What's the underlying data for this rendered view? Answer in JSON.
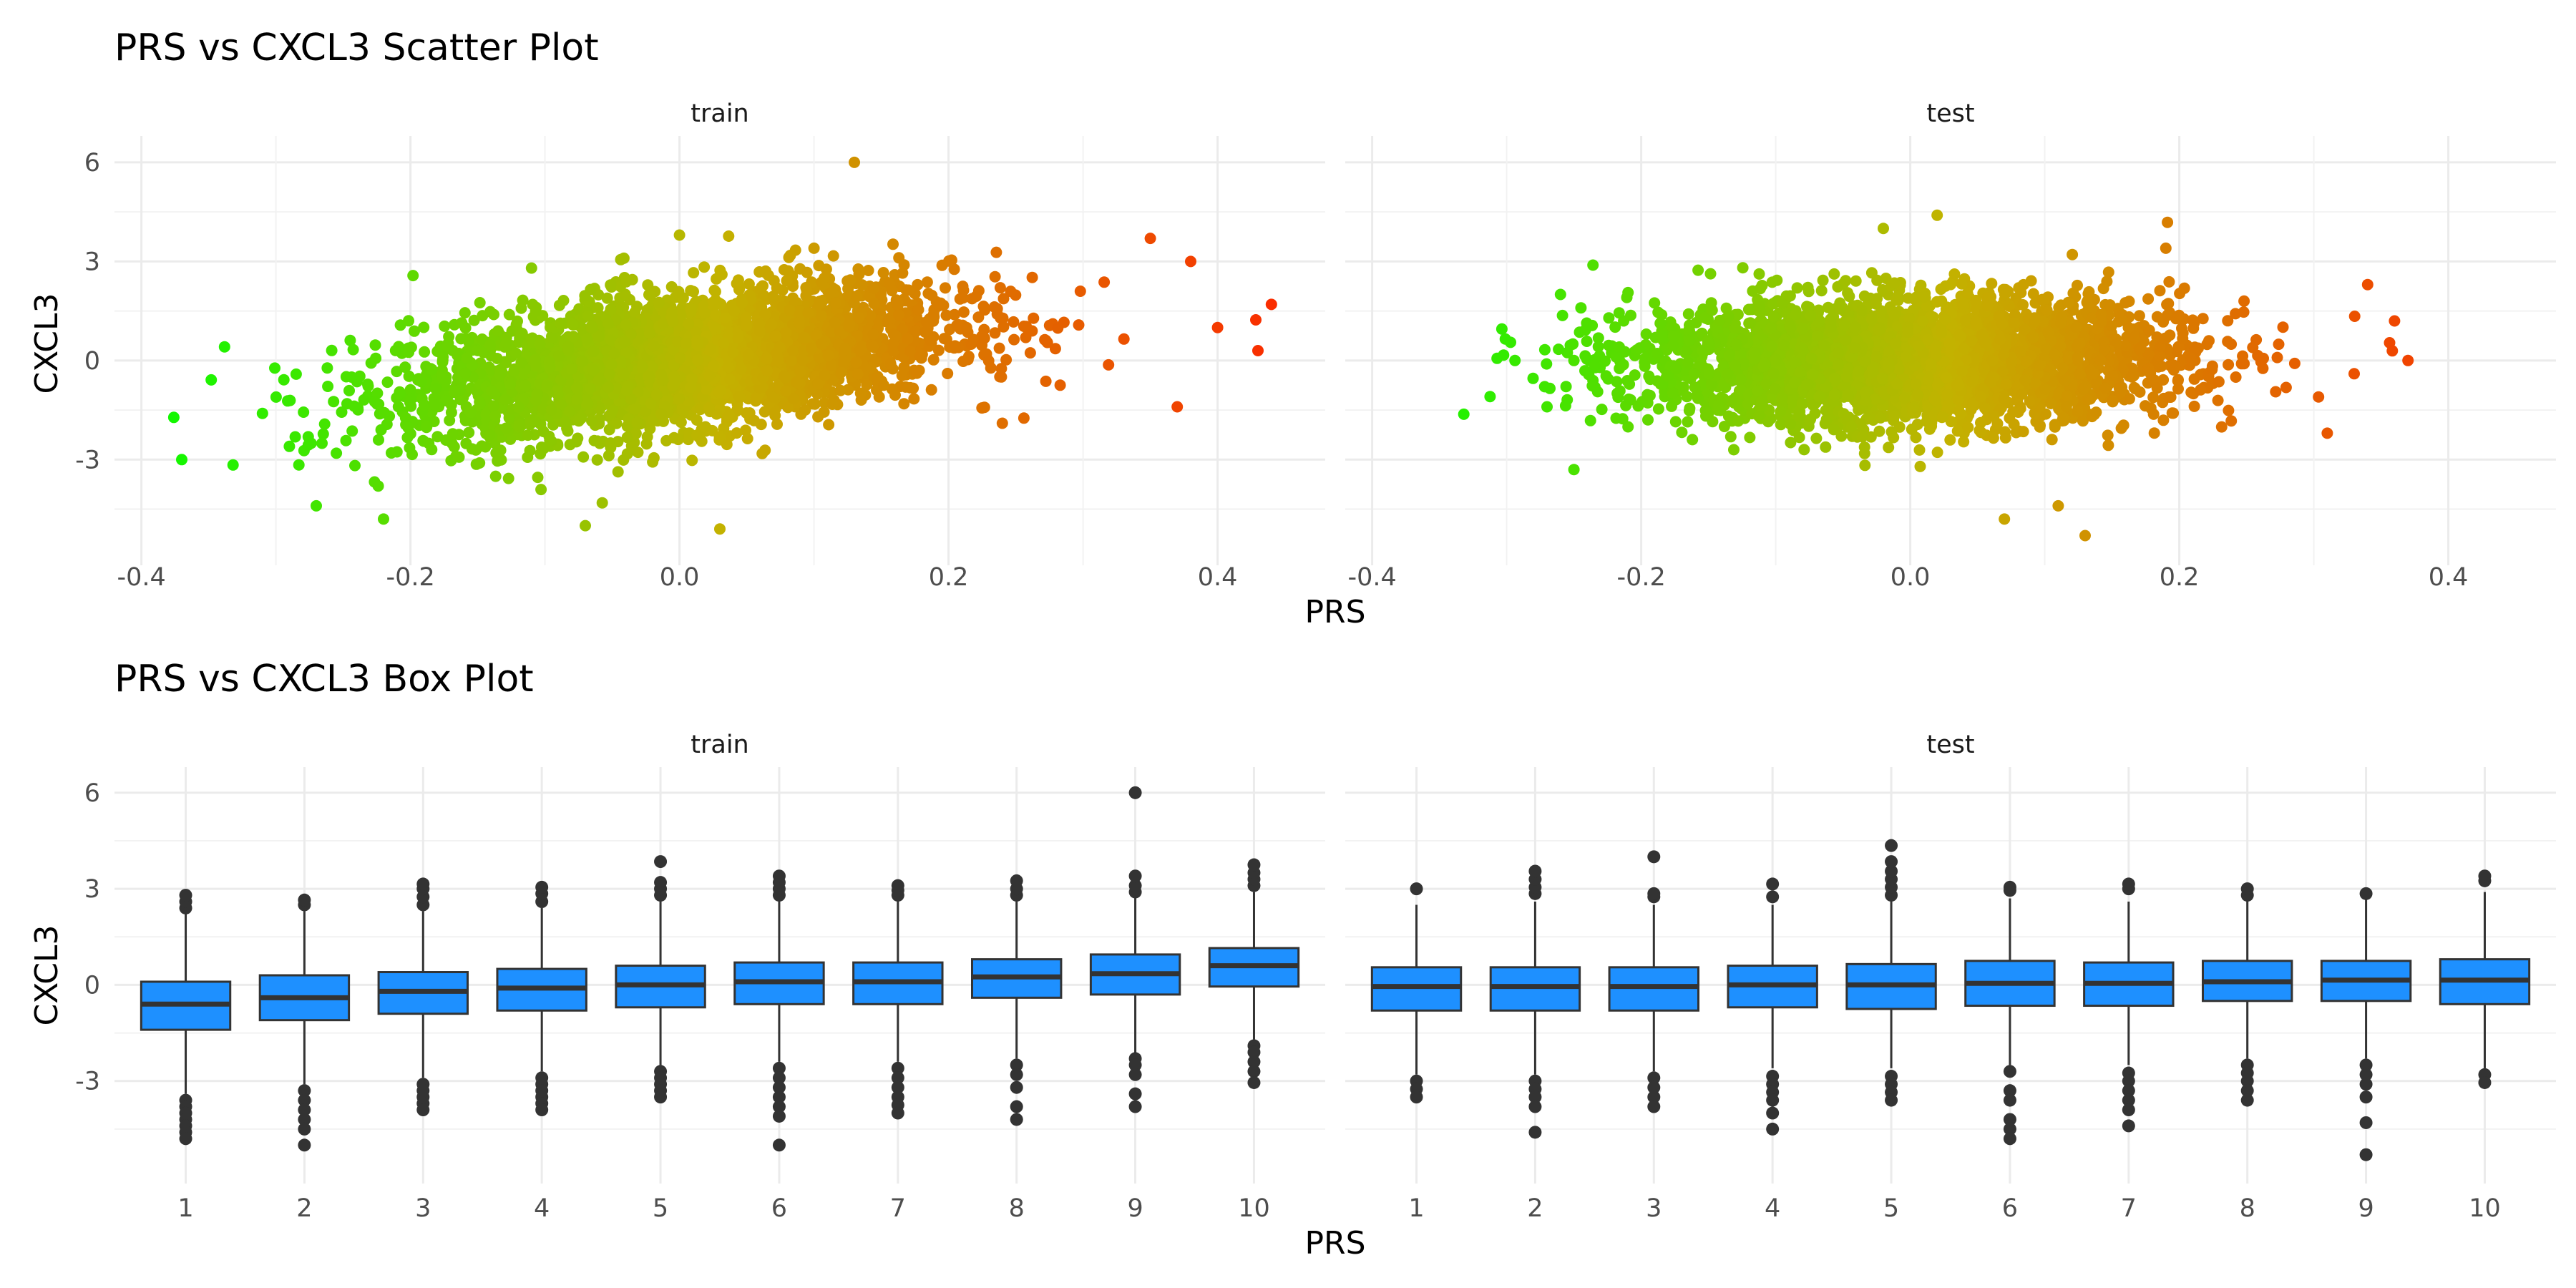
{
  "chart_data": [
    {
      "type": "scatter",
      "title": "PRS vs CXCL3 Scatter Plot",
      "xlabel": "PRS",
      "ylabel": "CXCL3",
      "facets": [
        "train",
        "test"
      ],
      "xlim": [
        -0.42,
        0.48
      ],
      "ylim": [
        -6.2,
        6.8
      ],
      "x_ticks": [
        -0.4,
        -0.2,
        0.0,
        0.2,
        0.4
      ],
      "x_tick_labels": [
        "-0.4",
        "-0.2",
        "0.0",
        "0.2",
        "0.4"
      ],
      "y_ticks": [
        -3,
        0,
        3,
        6
      ],
      "y_tick_labels": [
        "-3",
        "0",
        "3",
        "6"
      ],
      "grid": true,
      "color_scale": {
        "low": "#00ff00",
        "mid": "#c3b200",
        "high": "#ff2000"
      },
      "panels": [
        {
          "name": "train",
          "trend": {
            "x_mean": 0.0,
            "x_sd": 0.1,
            "slope": 5.0,
            "intercept": 0.0,
            "y_sd": 1.0
          },
          "points": [
            [
              -0.37,
              -3.0
            ],
            [
              -0.31,
              -1.6
            ],
            [
              -0.29,
              -2.6
            ],
            [
              -0.22,
              -4.8
            ],
            [
              0.13,
              6.0
            ],
            [
              0.03,
              -5.1
            ],
            [
              -0.07,
              -5.0
            ],
            [
              0.44,
              1.7
            ],
            [
              0.43,
              0.3
            ],
            [
              0.4,
              1.0
            ],
            [
              0.38,
              3.0
            ],
            [
              0.37,
              -1.4
            ],
            [
              0.35,
              3.7
            ],
            [
              -0.27,
              -4.4
            ],
            [
              0.0,
              3.8
            ],
            [
              -0.11,
              2.8
            ],
            [
              0.1,
              3.4
            ],
            [
              0.24,
              -1.9
            ]
          ]
        },
        {
          "name": "test",
          "trend": {
            "x_mean": 0.0,
            "x_sd": 0.1,
            "slope": 0.6,
            "intercept": 0.0,
            "y_sd": 0.95
          },
          "points": [
            [
              -0.26,
              2.0
            ],
            [
              -0.27,
              -1.4
            ],
            [
              -0.25,
              -3.3
            ],
            [
              -0.25,
              0.0
            ],
            [
              0.37,
              0.0
            ],
            [
              0.36,
              1.2
            ],
            [
              0.34,
              2.3
            ],
            [
              0.31,
              -2.2
            ],
            [
              0.02,
              4.4
            ],
            [
              -0.02,
              4.0
            ],
            [
              0.13,
              -5.3
            ],
            [
              0.07,
              -4.8
            ],
            [
              0.19,
              3.4
            ],
            [
              0.11,
              -4.4
            ],
            [
              0.33,
              -0.4
            ]
          ]
        }
      ]
    },
    {
      "type": "box",
      "title": "PRS vs CXCL3 Box Plot",
      "xlabel": "PRS",
      "ylabel": "CXCL3",
      "facets": [
        "train",
        "test"
      ],
      "categories": [
        "1",
        "2",
        "3",
        "4",
        "5",
        "6",
        "7",
        "8",
        "9",
        "10"
      ],
      "ylim": [
        -6.2,
        6.8
      ],
      "y_ticks": [
        -3,
        0,
        3,
        6
      ],
      "y_tick_labels": [
        "-3",
        "0",
        "3",
        "6"
      ],
      "grid": true,
      "box_fill": "#1e90ff",
      "line_color": "#333333",
      "panels": [
        {
          "name": "train",
          "boxes": [
            {
              "category": "1",
              "q1": -1.4,
              "median": -0.6,
              "q3": 0.1,
              "whisker_low": -3.4,
              "whisker_high": 2.3,
              "outliers_high": [
                2.4,
                2.6,
                2.8
              ],
              "outliers_low": [
                -3.6,
                -3.8,
                -4.0,
                -4.2,
                -4.4,
                -4.6,
                -4.8
              ]
            },
            {
              "category": "2",
              "q1": -1.1,
              "median": -0.4,
              "q3": 0.3,
              "whisker_low": -3.1,
              "whisker_high": 2.3,
              "outliers_high": [
                2.5,
                2.65
              ],
              "outliers_low": [
                -3.3,
                -3.6,
                -3.9,
                -4.2,
                -4.5,
                -5.0
              ]
            },
            {
              "category": "3",
              "q1": -0.9,
              "median": -0.2,
              "q3": 0.4,
              "whisker_low": -2.9,
              "whisker_high": 2.3,
              "outliers_high": [
                2.5,
                2.75,
                3.0,
                3.15
              ],
              "outliers_low": [
                -3.1,
                -3.3,
                -3.5,
                -3.7,
                -3.9
              ]
            },
            {
              "category": "4",
              "q1": -0.8,
              "median": -0.1,
              "q3": 0.5,
              "whisker_low": -2.7,
              "whisker_high": 2.4,
              "outliers_high": [
                2.6,
                2.85,
                3.05
              ],
              "outliers_low": [
                -2.9,
                -3.1,
                -3.3,
                -3.5,
                -3.7,
                -3.9
              ]
            },
            {
              "category": "5",
              "q1": -0.7,
              "median": 0.0,
              "q3": 0.6,
              "whisker_low": -2.5,
              "whisker_high": 2.6,
              "outliers_high": [
                2.8,
                3.0,
                3.2,
                3.85
              ],
              "outliers_low": [
                -2.7,
                -2.9,
                -3.1,
                -3.3,
                -3.5
              ]
            },
            {
              "category": "6",
              "q1": -0.6,
              "median": 0.1,
              "q3": 0.7,
              "whisker_low": -2.4,
              "whisker_high": 2.6,
              "outliers_high": [
                2.8,
                3.0,
                3.2,
                3.4
              ],
              "outliers_low": [
                -2.6,
                -2.9,
                -3.2,
                -3.5,
                -3.8,
                -4.1,
                -5.0
              ]
            },
            {
              "category": "7",
              "q1": -0.6,
              "median": 0.1,
              "q3": 0.7,
              "whisker_low": -2.4,
              "whisker_high": 2.6,
              "outliers_high": [
                2.8,
                2.95,
                3.1
              ],
              "outliers_low": [
                -2.6,
                -2.9,
                -3.2,
                -3.5,
                -3.75,
                -4.0
              ]
            },
            {
              "category": "8",
              "q1": -0.4,
              "median": 0.25,
              "q3": 0.8,
              "whisker_low": -2.3,
              "whisker_high": 2.6,
              "outliers_high": [
                2.8,
                3.0,
                3.25
              ],
              "outliers_low": [
                -2.5,
                -2.8,
                -3.2,
                -3.8,
                -4.2
              ]
            },
            {
              "category": "9",
              "q1": -0.3,
              "median": 0.35,
              "q3": 0.95,
              "whisker_low": -2.1,
              "whisker_high": 2.7,
              "outliers_high": [
                2.9,
                3.1,
                3.4,
                6.0
              ],
              "outliers_low": [
                -2.3,
                -2.5,
                -2.8,
                -3.4,
                -3.8
              ]
            },
            {
              "category": "10",
              "q1": -0.05,
              "median": 0.6,
              "q3": 1.15,
              "whisker_low": -1.7,
              "whisker_high": 2.9,
              "outliers_high": [
                3.1,
                3.3,
                3.5,
                3.75
              ],
              "outliers_low": [
                -1.9,
                -2.1,
                -2.4,
                -2.7,
                -3.05
              ]
            }
          ]
        },
        {
          "name": "test",
          "boxes": [
            {
              "category": "1",
              "q1": -0.8,
              "median": -0.05,
              "q3": 0.55,
              "whisker_low": -2.8,
              "whisker_high": 2.5,
              "outliers_high": [
                3.0
              ],
              "outliers_low": [
                -3.0,
                -3.25,
                -3.5
              ]
            },
            {
              "category": "2",
              "q1": -0.8,
              "median": -0.05,
              "q3": 0.55,
              "whisker_low": -2.8,
              "whisker_high": 2.6,
              "outliers_high": [
                2.85,
                3.05,
                3.3,
                3.55
              ],
              "outliers_low": [
                -3.0,
                -3.25,
                -3.5,
                -3.8,
                -4.6
              ]
            },
            {
              "category": "3",
              "q1": -0.8,
              "median": -0.05,
              "q3": 0.55,
              "whisker_low": -2.7,
              "whisker_high": 2.5,
              "outliers_high": [
                2.75,
                2.85,
                4.0
              ],
              "outliers_low": [
                -2.9,
                -3.2,
                -3.5,
                -3.8
              ]
            },
            {
              "category": "4",
              "q1": -0.7,
              "median": 0.0,
              "q3": 0.6,
              "whisker_low": -2.6,
              "whisker_high": 2.5,
              "outliers_high": [
                2.75,
                3.15
              ],
              "outliers_low": [
                -2.85,
                -3.1,
                -3.35,
                -3.6,
                -4.0,
                -4.5
              ]
            },
            {
              "category": "5",
              "q1": -0.75,
              "median": 0.0,
              "q3": 0.65,
              "whisker_low": -2.6,
              "whisker_high": 2.6,
              "outliers_high": [
                2.8,
                3.05,
                3.3,
                3.55,
                3.85,
                4.35
              ],
              "outliers_low": [
                -2.85,
                -3.1,
                -3.35,
                -3.6
              ]
            },
            {
              "category": "6",
              "q1": -0.65,
              "median": 0.05,
              "q3": 0.75,
              "whisker_low": -2.5,
              "whisker_high": 2.7,
              "outliers_high": [
                2.95,
                3.05
              ],
              "outliers_low": [
                -2.7,
                -3.3,
                -3.6,
                -4.2,
                -4.5,
                -4.8
              ]
            },
            {
              "category": "7",
              "q1": -0.65,
              "median": 0.05,
              "q3": 0.7,
              "whisker_low": -2.5,
              "whisker_high": 2.6,
              "outliers_high": [
                3.0,
                3.15
              ],
              "outliers_low": [
                -2.75,
                -3.0,
                -3.3,
                -3.6,
                -3.9,
                -4.4
              ]
            },
            {
              "category": "8",
              "q1": -0.5,
              "median": 0.1,
              "q3": 0.75,
              "whisker_low": -2.3,
              "whisker_high": 2.7,
              "outliers_high": [
                2.8,
                3.0
              ],
              "outliers_low": [
                -2.5,
                -2.75,
                -3.0,
                -3.3,
                -3.6
              ]
            },
            {
              "category": "9",
              "q1": -0.5,
              "median": 0.15,
              "q3": 0.75,
              "whisker_low": -2.3,
              "whisker_high": 2.7,
              "outliers_high": [
                2.85
              ],
              "outliers_low": [
                -2.5,
                -2.8,
                -3.1,
                -3.5,
                -4.3,
                -5.3
              ]
            },
            {
              "category": "10",
              "q1": -0.6,
              "median": 0.15,
              "q3": 0.8,
              "whisker_low": -2.6,
              "whisker_high": 2.9,
              "outliers_high": [
                3.25,
                3.4
              ],
              "outliers_low": [
                -2.8,
                -3.05
              ]
            }
          ]
        }
      ]
    }
  ]
}
